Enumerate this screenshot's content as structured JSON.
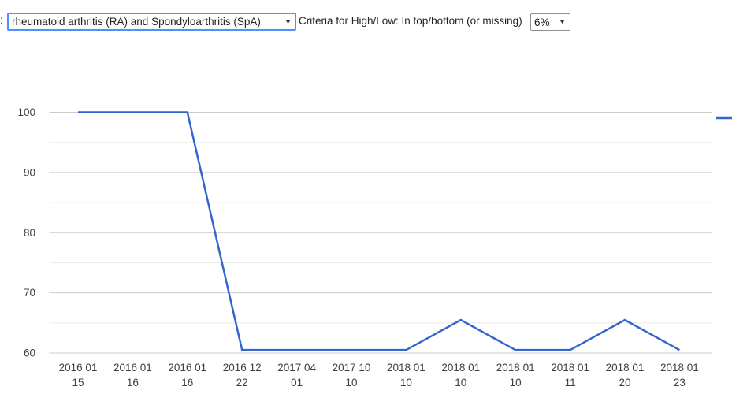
{
  "controls": {
    "prefix": ":",
    "disease_select": {
      "value": "rheumatoid arthritis (RA) and Spondyloarthritis (SpA)"
    },
    "criteria_label": "Criteria for High/Low: In top/bottom (or missing)",
    "percent_select": {
      "value": "6%"
    }
  },
  "icons": {
    "dropdown_arrow": "▼"
  },
  "chart_data": {
    "type": "line",
    "title": "",
    "xlabel": "",
    "ylabel": "",
    "categories": [
      "2016 01 15",
      "2016 01 16",
      "2016 01 16",
      "2016 12 22",
      "2017 04 01",
      "2017 10 10",
      "2018 01 10",
      "2018 01 10",
      "2018 01 10",
      "2018 01 11",
      "2018 01 20",
      "2018 01 23"
    ],
    "values": [
      100,
      100,
      100,
      60.5,
      60.5,
      60.5,
      60.5,
      65.5,
      60.5,
      60.5,
      65.5,
      60.5
    ],
    "ylim": [
      60,
      100
    ],
    "yticks": [
      60,
      70,
      80,
      90,
      100
    ],
    "minor_ticks": [
      65,
      75,
      85,
      95
    ],
    "grid": true,
    "legend_position": "right-edge-cut-off",
    "colors": {
      "series": "#3366cc",
      "major_gridline": "#cccccc",
      "minor_gridline": "#ebebeb",
      "axis_label": "#404040"
    }
  }
}
